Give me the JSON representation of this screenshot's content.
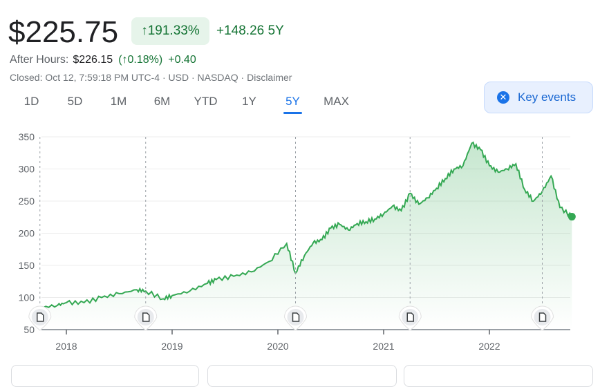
{
  "quote": {
    "price": "$225.75",
    "change_pct": "191.33%",
    "change_abs": "+148.26",
    "period": "5Y",
    "after_hours_label": "After Hours:",
    "after_hours_price": "$226.15",
    "after_hours_pct": "0.18%",
    "after_hours_abs": "+0.40",
    "meta": "Closed: Oct 12, 7:59:18 PM UTC-4 · USD · NASDAQ · Disclaimer"
  },
  "tabs": [
    {
      "label": "1D"
    },
    {
      "label": "5D"
    },
    {
      "label": "1M"
    },
    {
      "label": "6M"
    },
    {
      "label": "YTD"
    },
    {
      "label": "1Y"
    },
    {
      "label": "5Y",
      "active": true
    },
    {
      "label": "MAX"
    }
  ],
  "key_events": {
    "label": "Key events",
    "icon": "close-icon"
  },
  "colors": {
    "up": "#137333",
    "line": "#34a853",
    "accent": "#1a73e8"
  },
  "chart_data": {
    "type": "area",
    "ylim": [
      50,
      350
    ],
    "yticks": [
      "350",
      "300",
      "250",
      "200",
      "150",
      "100",
      "50"
    ],
    "xticks": [
      "2018",
      "2019",
      "2020",
      "2021",
      "2022"
    ],
    "xrange": [
      "2017-10",
      "2022-10"
    ],
    "grid": true,
    "series": [
      {
        "x": [
          "2017-10",
          "2017-12",
          "2018-01",
          "2018-03",
          "2018-05",
          "2018-07",
          "2018-09",
          "2018-10",
          "2018-12",
          "2019-01",
          "2019-03",
          "2019-05",
          "2019-06",
          "2019-08",
          "2019-10",
          "2019-12",
          "2020-02",
          "2020-03",
          "2020-04",
          "2020-05",
          "2020-06",
          "2020-07",
          "2020-08",
          "2020-09",
          "2020-10",
          "2020-11",
          "2020-12",
          "2021-01",
          "2021-02",
          "2021-03",
          "2021-04",
          "2021-05",
          "2021-06",
          "2021-07",
          "2021-08",
          "2021-09",
          "2021-10",
          "2021-11",
          "2021-12",
          "2022-01",
          "2022-02",
          "2022-03",
          "2022-04",
          "2022-05",
          "2022-06",
          "2022-07",
          "2022-08",
          "2022-09",
          "2022-10"
        ],
        "values": [
          84,
          88,
          92,
          92,
          100,
          106,
          112,
          110,
          98,
          103,
          110,
          122,
          128,
          133,
          140,
          156,
          184,
          138,
          165,
          185,
          190,
          208,
          214,
          205,
          215,
          218,
          222,
          230,
          242,
          235,
          262,
          245,
          255,
          270,
          285,
          300,
          305,
          340,
          330,
          305,
          295,
          300,
          308,
          268,
          250,
          265,
          289,
          240,
          225.75
        ]
      }
    ],
    "event_markers": [
      "2017-10",
      "2018-10",
      "2020-03",
      "2021-04",
      "2022-07"
    ]
  }
}
